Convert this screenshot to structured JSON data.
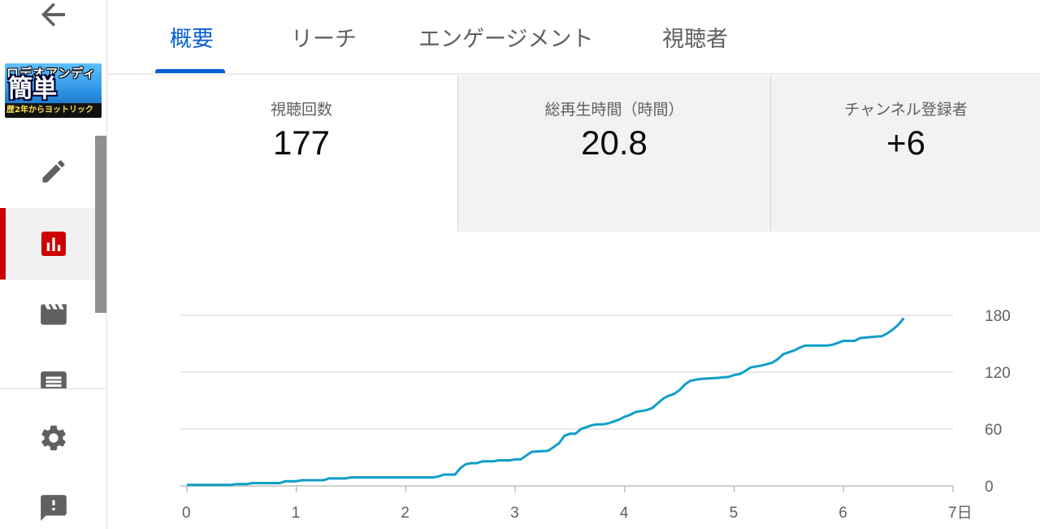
{
  "sidebar": {
    "thumbnail": {
      "top_text": "ロデオアンディ",
      "main_text": "簡単",
      "bottom_text": "歴2年からヨットリック"
    },
    "active_item": "analytics"
  },
  "tabs": [
    {
      "label": "概要",
      "active": true
    },
    {
      "label": "リーチ",
      "active": false
    },
    {
      "label": "エンゲージメント",
      "active": false
    },
    {
      "label": "視聴者",
      "active": false
    }
  ],
  "metrics": [
    {
      "label": "視聴回数",
      "value": "177"
    },
    {
      "label": "総再生時間（時間）",
      "value": "20.8"
    },
    {
      "label": "チャンネル登録者",
      "value": "+6"
    }
  ],
  "colors": {
    "accent": "#065fd4",
    "active_marker": "#cc0000",
    "series": "#0f9ec9"
  },
  "chart_data": {
    "type": "line",
    "x_tick_labels": [
      "0",
      "1",
      "2",
      "3",
      "4",
      "5",
      "6",
      "7日"
    ],
    "y_tick_labels": [
      "0",
      "60",
      "120",
      "180"
    ],
    "xlim": [
      0,
      7
    ],
    "ylim": [
      0,
      180
    ],
    "grid": true,
    "series": [
      {
        "color": "#0f9ec9",
        "points": [
          [
            0,
            1
          ],
          [
            0.4,
            1
          ],
          [
            0.45,
            2
          ],
          [
            0.55,
            2
          ],
          [
            0.6,
            3
          ],
          [
            0.85,
            3
          ],
          [
            0.9,
            5
          ],
          [
            1.0,
            5
          ],
          [
            1.05,
            6
          ],
          [
            1.25,
            6
          ],
          [
            1.3,
            8
          ],
          [
            1.45,
            8
          ],
          [
            1.5,
            9
          ],
          [
            1.8,
            9
          ],
          [
            2.0,
            9
          ],
          [
            2.25,
            9
          ],
          [
            2.3,
            10
          ],
          [
            2.35,
            12
          ],
          [
            2.45,
            12
          ],
          [
            2.5,
            19
          ],
          [
            2.55,
            23
          ],
          [
            2.6,
            24
          ],
          [
            2.65,
            24
          ],
          [
            2.7,
            26
          ],
          [
            2.8,
            26
          ],
          [
            2.85,
            27
          ],
          [
            2.95,
            27
          ],
          [
            3.0,
            28
          ],
          [
            3.05,
            28
          ],
          [
            3.1,
            32
          ],
          [
            3.15,
            36
          ],
          [
            3.3,
            37
          ],
          [
            3.35,
            41
          ],
          [
            3.4,
            45
          ],
          [
            3.45,
            53
          ],
          [
            3.5,
            55
          ],
          [
            3.55,
            55
          ],
          [
            3.6,
            60
          ],
          [
            3.65,
            62
          ],
          [
            3.7,
            64
          ],
          [
            3.75,
            65
          ],
          [
            3.8,
            65
          ],
          [
            3.85,
            66
          ],
          [
            3.9,
            68
          ],
          [
            3.95,
            70
          ],
          [
            4.0,
            73
          ],
          [
            4.05,
            75
          ],
          [
            4.1,
            78
          ],
          [
            4.2,
            80
          ],
          [
            4.25,
            82
          ],
          [
            4.3,
            87
          ],
          [
            4.35,
            92
          ],
          [
            4.4,
            95
          ],
          [
            4.45,
            97
          ],
          [
            4.5,
            101
          ],
          [
            4.55,
            107
          ],
          [
            4.6,
            111
          ],
          [
            4.65,
            112
          ],
          [
            4.7,
            113
          ],
          [
            4.85,
            114
          ],
          [
            4.95,
            115
          ],
          [
            5.0,
            117
          ],
          [
            5.05,
            118
          ],
          [
            5.1,
            121
          ],
          [
            5.15,
            125
          ],
          [
            5.25,
            127
          ],
          [
            5.35,
            130
          ],
          [
            5.4,
            134
          ],
          [
            5.45,
            139
          ],
          [
            5.5,
            141
          ],
          [
            5.55,
            143
          ],
          [
            5.6,
            146
          ],
          [
            5.65,
            148
          ],
          [
            5.7,
            148
          ],
          [
            5.85,
            148
          ],
          [
            5.9,
            149
          ],
          [
            5.95,
            151
          ],
          [
            6.0,
            153
          ],
          [
            6.1,
            153
          ],
          [
            6.15,
            156
          ],
          [
            6.25,
            157
          ],
          [
            6.35,
            158
          ],
          [
            6.4,
            161
          ],
          [
            6.45,
            165
          ],
          [
            6.5,
            170
          ],
          [
            6.55,
            177
          ]
        ]
      }
    ]
  }
}
